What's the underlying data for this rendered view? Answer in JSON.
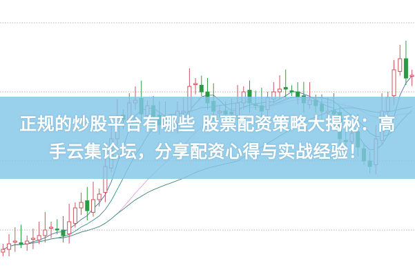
{
  "headline": {
    "line1": "正规的炒股平台有哪些 股票配资策略大揭秘：高",
    "line2": "手云集论坛，分享配资心得与实战经验！"
  },
  "chart": {
    "type": "candlestick",
    "grid": "dotted horizontal",
    "colors": {
      "up": "#c8525a",
      "down": "#2a9a45",
      "grid": "#b0b0b0",
      "banner": "#82c6e8",
      "ma_short": "#4a6fa5",
      "ma_mid": "#2f8f8f",
      "ma_pink": "#e3a0e0",
      "ma_long": "#3d8a7a"
    },
    "closes": [
      10,
      12,
      13,
      12,
      13,
      14,
      15,
      17,
      18,
      17,
      15,
      20,
      25,
      27,
      24,
      28,
      30,
      40,
      50,
      58,
      57,
      63,
      64,
      59,
      62,
      58,
      55,
      57,
      55,
      60,
      60,
      69,
      70,
      67,
      63,
      60,
      60,
      59,
      59,
      63,
      67,
      63,
      62,
      60,
      65,
      67,
      68,
      68,
      67,
      65,
      63,
      64,
      62,
      60,
      60,
      59,
      50,
      49,
      52,
      47,
      42,
      40,
      50,
      60,
      65,
      75,
      79,
      72,
      73
    ]
  }
}
